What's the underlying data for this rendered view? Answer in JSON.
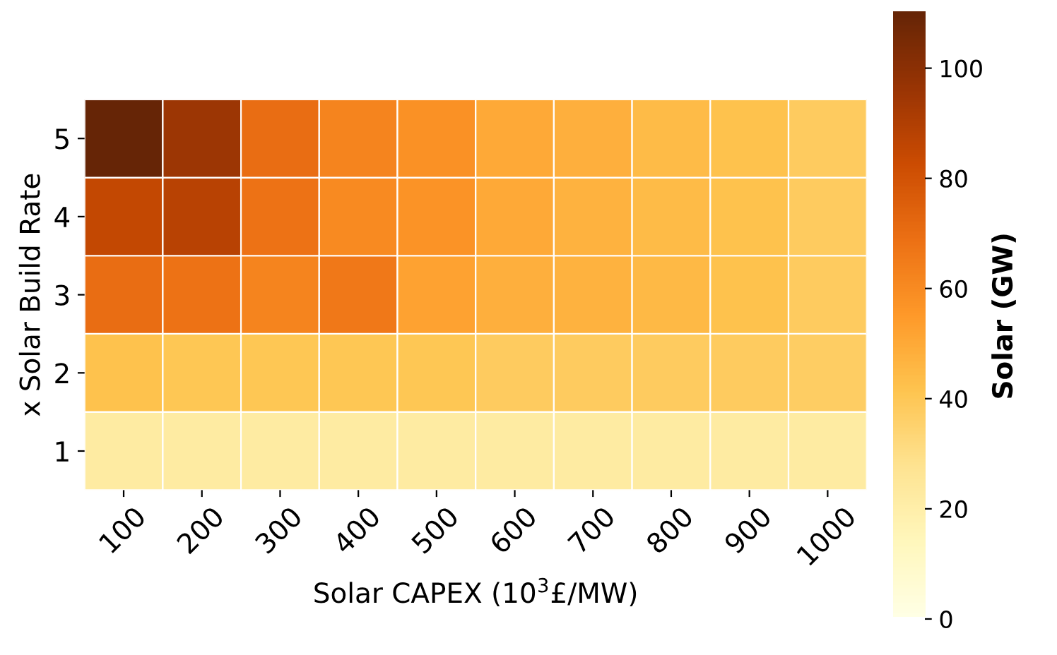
{
  "chart_data": {
    "type": "heatmap",
    "xlabel": "Solar CAPEX (10$^{3}$£/MW)",
    "ylabel": "x Solar Build Rate",
    "clabel": "Solar (GW)",
    "categories": [
      "100",
      "200",
      "300",
      "400",
      "500",
      "600",
      "700",
      "800",
      "900",
      "1000"
    ],
    "y_categories": [
      "5",
      "4",
      "3",
      "2",
      "1"
    ],
    "cells": [
      [
        110,
        95,
        70,
        62,
        58,
        50,
        48,
        44,
        42,
        38
      ],
      [
        85,
        88,
        68,
        60,
        57,
        50,
        47,
        44,
        42,
        38
      ],
      [
        70,
        68,
        62,
        66,
        52,
        48,
        47,
        45,
        42,
        38
      ],
      [
        42,
        40,
        40,
        40,
        40,
        38,
        38,
        38,
        38,
        37
      ],
      [
        22,
        22,
        22,
        22,
        22,
        22,
        22,
        22,
        22,
        22
      ]
    ],
    "clim": [
      0,
      110
    ],
    "cticks": [
      0,
      20,
      40,
      60,
      80,
      100
    ]
  }
}
